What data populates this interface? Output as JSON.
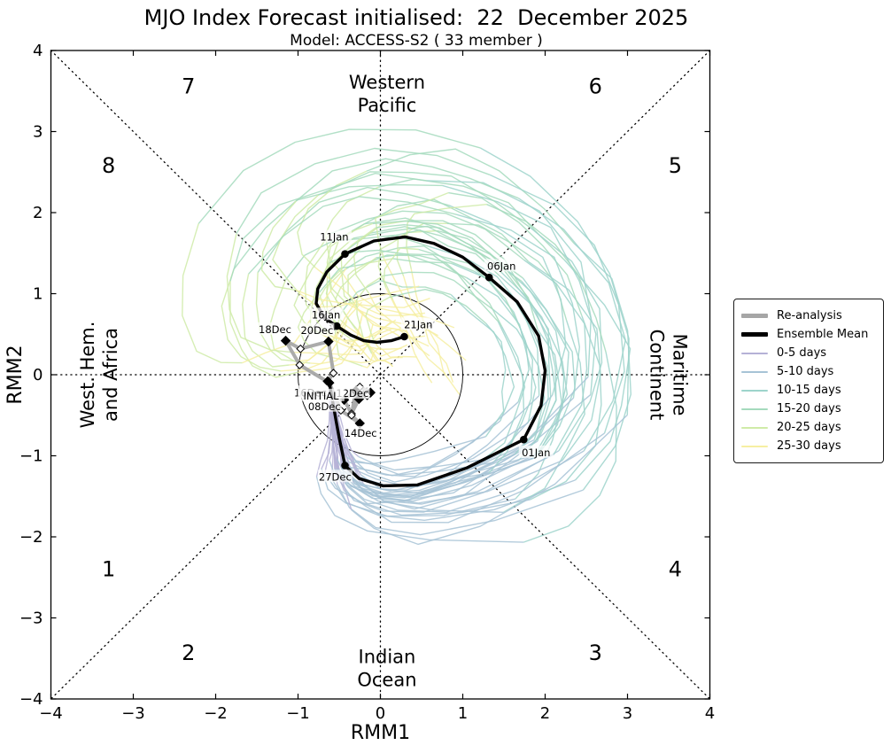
{
  "figure": {
    "title": "MJO Index Forecast initialised:  22  December 2025",
    "subtitle": "Model: ACCESS-S2 ( 33 member )"
  },
  "chart_data": {
    "type": "line",
    "title": "MJO Index Forecast initialised:  22  December 2025",
    "subtitle": "Model: ACCESS-S2 ( 33 member )",
    "xlabel": "RMM1",
    "ylabel": "RMM2",
    "xlim": [
      -4,
      4
    ],
    "ylim": [
      -4,
      4
    ],
    "xticks": [
      -4,
      -3,
      -2,
      -1,
      0,
      1,
      2,
      3,
      4
    ],
    "yticks": [
      -4,
      -3,
      -2,
      -1,
      0,
      1,
      2,
      3,
      4
    ],
    "unit_circle_radius": 1,
    "grid": "dotted phase wedges: diagonals, x=0, y=0",
    "phase_labels": [
      {
        "label": "1",
        "x": -3.3,
        "y": -2.4
      },
      {
        "label": "2",
        "x": -2.33,
        "y": -3.43
      },
      {
        "label": "3",
        "x": 2.61,
        "y": -3.43
      },
      {
        "label": "4",
        "x": 3.58,
        "y": -2.4
      },
      {
        "label": "5",
        "x": 3.58,
        "y": 2.58
      },
      {
        "label": "6",
        "x": 2.61,
        "y": 3.56
      },
      {
        "label": "7",
        "x": -2.33,
        "y": 3.56
      },
      {
        "label": "8",
        "x": -3.3,
        "y": 2.58
      }
    ],
    "region_labels": [
      {
        "lines": [
          "Western",
          "Pacific"
        ],
        "x": 0.08,
        "y": 3.47,
        "rotation": 0
      },
      {
        "lines": [
          "Indian",
          "Ocean"
        ],
        "x": 0.08,
        "y": -3.62,
        "rotation": 0
      },
      {
        "lines": [
          "West. Hem.",
          "and Africa"
        ],
        "x": -3.42,
        "y": 0,
        "rotation": -90
      },
      {
        "lines": [
          "Maritime",
          "Continent"
        ],
        "x": 3.5,
        "y": 0,
        "rotation": 90
      }
    ],
    "ensemble_mean": {
      "color": "#000000",
      "points": [
        [
          -0.62,
          -0.1
        ],
        [
          -0.58,
          -0.33
        ],
        [
          -0.54,
          -0.56
        ],
        [
          -0.5,
          -0.78
        ],
        [
          -0.46,
          -0.97
        ],
        [
          -0.43,
          -1.12
        ],
        [
          -0.26,
          -1.28
        ],
        [
          0.03,
          -1.37
        ],
        [
          0.45,
          -1.36
        ],
        [
          1.05,
          -1.15
        ],
        [
          1.74,
          -0.8
        ],
        [
          1.95,
          -0.38
        ],
        [
          2.0,
          0.05
        ],
        [
          1.92,
          0.48
        ],
        [
          1.66,
          0.9
        ],
        [
          1.32,
          1.2
        ],
        [
          1.0,
          1.45
        ],
        [
          0.65,
          1.62
        ],
        [
          0.3,
          1.7
        ],
        [
          -0.08,
          1.65
        ],
        [
          -0.43,
          1.49
        ],
        [
          -0.65,
          1.27
        ],
        [
          -0.76,
          1.06
        ],
        [
          -0.78,
          0.88
        ],
        [
          -0.68,
          0.7
        ],
        [
          -0.53,
          0.6
        ],
        [
          -0.36,
          0.49
        ],
        [
          -0.2,
          0.42
        ],
        [
          -0.04,
          0.4
        ],
        [
          0.13,
          0.42
        ],
        [
          0.29,
          0.47
        ]
      ],
      "labels": [
        {
          "index": 5,
          "text": "27Dec",
          "lx": -0.55,
          "ly": -1.26
        },
        {
          "index": 10,
          "text": "01Jan",
          "lx": 1.89,
          "ly": -0.96
        },
        {
          "index": 15,
          "text": "06Jan",
          "lx": 1.47,
          "ly": 1.34
        },
        {
          "index": 20,
          "text": "11Jan",
          "lx": -0.56,
          "ly": 1.7
        },
        {
          "index": 25,
          "text": "16Jan",
          "lx": -0.66,
          "ly": 0.74
        },
        {
          "index": 30,
          "text": "21Jan",
          "lx": 0.46,
          "ly": 0.62
        }
      ]
    },
    "reanalysis": {
      "color": "#a6a6a6",
      "points": [
        {
          "x": -0.12,
          "y": -0.22,
          "m": "f"
        },
        {
          "x": -0.25,
          "y": -0.15,
          "m": "o"
        },
        {
          "x": -0.44,
          "y": -0.31,
          "m": "f"
        },
        {
          "x": -0.35,
          "y": -0.48,
          "m": "o"
        },
        {
          "x": -0.26,
          "y": -0.3,
          "m": "f"
        },
        {
          "x": -0.16,
          "y": -0.26,
          "m": "o"
        },
        {
          "x": -0.3,
          "y": -0.2,
          "m": "f"
        },
        {
          "x": -0.35,
          "y": -0.5,
          "m": "o"
        },
        {
          "x": -0.25,
          "y": -0.6,
          "m": "f"
        },
        {
          "x": -0.48,
          "y": -0.44,
          "m": "o"
        },
        {
          "x": -0.62,
          "y": -0.1,
          "m": "f"
        },
        {
          "x": -0.98,
          "y": 0.12,
          "m": "o"
        },
        {
          "x": -1.15,
          "y": 0.42,
          "m": "f"
        },
        {
          "x": -0.97,
          "y": 0.32,
          "m": "o"
        },
        {
          "x": -0.63,
          "y": 0.41,
          "m": "f"
        },
        {
          "x": -0.57,
          "y": 0.02,
          "m": "o"
        },
        {
          "x": -0.64,
          "y": -0.08,
          "m": "f"
        }
      ],
      "labels": [
        {
          "text": "16Dec",
          "lx": -0.85,
          "ly": -0.22
        },
        {
          "text": "12Dec",
          "lx": -0.34,
          "ly": -0.23
        },
        {
          "text": "08Dec",
          "lx": -0.68,
          "ly": -0.39
        },
        {
          "text": "14Dec",
          "lx": -0.24,
          "ly": -0.72
        },
        {
          "text": "18Dec",
          "lx": -1.28,
          "ly": 0.56
        },
        {
          "text": "20Dec",
          "lx": -0.77,
          "ly": 0.55
        },
        {
          "text": "INITIAL",
          "lx": -0.72,
          "ly": -0.26
        }
      ]
    },
    "ensemble_members": {
      "count": 33,
      "days": 30,
      "seed": 20251222,
      "lead_time_bins": [
        {
          "label": "0-5 days",
          "color": "#b5b1d6"
        },
        {
          "label": "5-10 days",
          "color": "#a7c3d6"
        },
        {
          "label": "10-15 days",
          "color": "#9dd4cb"
        },
        {
          "label": "15-20 days",
          "color": "#a5dabd"
        },
        {
          "label": "20-25 days",
          "color": "#cfeba8"
        },
        {
          "label": "25-30 days",
          "color": "#f6efa2"
        }
      ]
    },
    "legend": {
      "entries": [
        {
          "label": "Re-analysis",
          "color": "#a6a6a6",
          "thick": true
        },
        {
          "label": "Ensemble Mean",
          "color": "#000000",
          "thick": true
        },
        {
          "label": "0-5 days",
          "color": "#b5b1d6",
          "thick": false
        },
        {
          "label": "5-10 days",
          "color": "#a7c3d6",
          "thick": false
        },
        {
          "label": "10-15 days",
          "color": "#9dd4cb",
          "thick": false
        },
        {
          "label": "15-20 days",
          "color": "#a5dabd",
          "thick": false
        },
        {
          "label": "20-25 days",
          "color": "#cfeba8",
          "thick": false
        },
        {
          "label": "25-30 days",
          "color": "#f6efa2",
          "thick": false
        }
      ]
    }
  }
}
